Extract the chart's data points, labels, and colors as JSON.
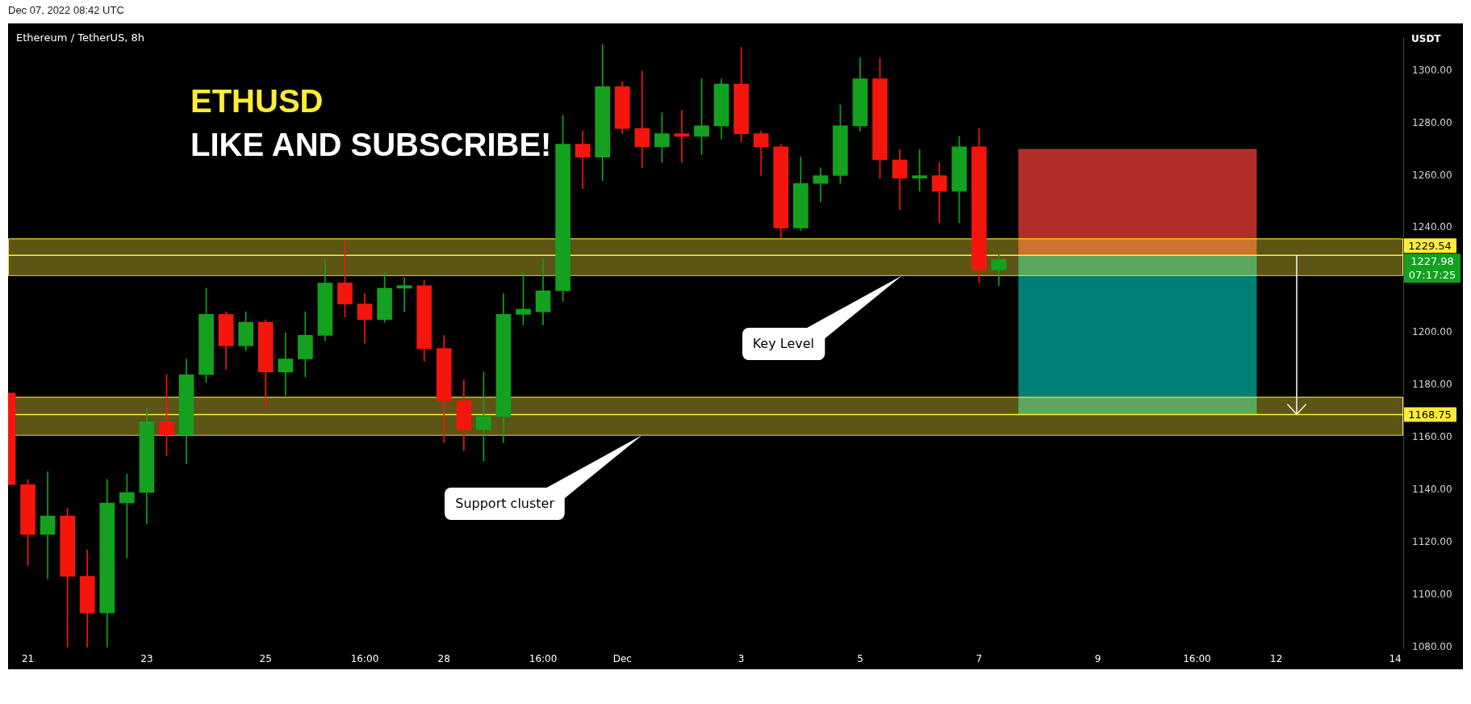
{
  "chart_data": {
    "type": "candlestick",
    "title": "Ethereum / TetherUS, 8h",
    "ylabel": "USDT",
    "series": [
      {
        "x": [
          "2022-11-20T16:00",
          "2022-11-21T00:00",
          "2022-11-21T08:00",
          "2022-11-21T16:00",
          "2022-11-22T00:00",
          "2022-11-22T08:00",
          "2022-11-22T16:00",
          "2022-11-23T00:00",
          "2022-11-23T08:00",
          "2022-11-23T16:00",
          "2022-11-24T00:00",
          "2022-11-24T08:00",
          "2022-11-24T16:00",
          "2022-11-25T00:00",
          "2022-11-25T08:00",
          "2022-11-25T16:00",
          "2022-11-26T00:00",
          "2022-11-26T08:00",
          "2022-11-26T16:00",
          "2022-11-27T00:00",
          "2022-11-27T08:00",
          "2022-11-27T16:00",
          "2022-11-28T00:00",
          "2022-11-28T08:00",
          "2022-11-28T16:00",
          "2022-11-29T00:00",
          "2022-11-29T08:00",
          "2022-11-29T16:00",
          "2022-11-30T00:00",
          "2022-11-30T08:00",
          "2022-11-30T16:00",
          "2022-12-01T00:00",
          "2022-12-01T08:00",
          "2022-12-01T16:00",
          "2022-12-02T00:00",
          "2022-12-02T08:00",
          "2022-12-02T16:00",
          "2022-12-03T00:00",
          "2022-12-03T08:00",
          "2022-12-03T16:00",
          "2022-12-04T00:00",
          "2022-12-04T08:00",
          "2022-12-04T16:00",
          "2022-12-05T00:00",
          "2022-12-05T08:00",
          "2022-12-05T16:00",
          "2022-12-06T00:00",
          "2022-12-06T08:00",
          "2022-12-06T16:00",
          "2022-12-07T00:00",
          "2022-12-07T08:00"
        ],
        "ohlc": [
          [
            1177,
            1177,
            1142,
            1142
          ],
          [
            1142,
            1144,
            1111,
            1123
          ],
          [
            1123,
            1147,
            1106,
            1130
          ],
          [
            1130,
            1133,
            1080,
            1107
          ],
          [
            1107,
            1117,
            1080,
            1093
          ],
          [
            1093,
            1144,
            1080,
            1135
          ],
          [
            1135,
            1146,
            1114,
            1139
          ],
          [
            1139,
            1171,
            1127,
            1166
          ],
          [
            1166,
            1184,
            1153,
            1161
          ],
          [
            1161,
            1190,
            1150,
            1184
          ],
          [
            1184,
            1217,
            1181,
            1207
          ],
          [
            1207,
            1208,
            1186,
            1195
          ],
          [
            1195,
            1208,
            1193,
            1204
          ],
          [
            1204,
            1205,
            1171,
            1185
          ],
          [
            1185,
            1200,
            1176,
            1190
          ],
          [
            1190,
            1208,
            1183,
            1199
          ],
          [
            1199,
            1228,
            1197,
            1219
          ],
          [
            1219,
            1235,
            1206,
            1211
          ],
          [
            1211,
            1215,
            1196,
            1205
          ],
          [
            1205,
            1223,
            1204,
            1217
          ],
          [
            1217,
            1221,
            1208,
            1218
          ],
          [
            1218,
            1220,
            1189,
            1194
          ],
          [
            1194,
            1199,
            1158,
            1174
          ],
          [
            1174,
            1182,
            1155,
            1163
          ],
          [
            1163,
            1185,
            1151,
            1168
          ],
          [
            1168,
            1215,
            1158,
            1207
          ],
          [
            1207,
            1223,
            1203,
            1209
          ],
          [
            1208,
            1228,
            1203,
            1216
          ],
          [
            1216,
            1283,
            1212,
            1272
          ],
          [
            1272,
            1277,
            1255,
            1267
          ],
          [
            1267,
            1310,
            1258,
            1294
          ],
          [
            1294,
            1296,
            1276,
            1278
          ],
          [
            1278,
            1300,
            1263,
            1271
          ],
          [
            1271,
            1284,
            1265,
            1276
          ],
          [
            1276,
            1285,
            1265,
            1275
          ],
          [
            1275,
            1297,
            1268,
            1279
          ],
          [
            1279,
            1297,
            1274,
            1295
          ],
          [
            1295,
            1309,
            1273,
            1276
          ],
          [
            1276,
            1277,
            1260,
            1271
          ],
          [
            1271,
            1272,
            1236,
            1240
          ],
          [
            1240,
            1267,
            1239,
            1257
          ],
          [
            1257,
            1263,
            1250,
            1260
          ],
          [
            1260,
            1287,
            1257,
            1279
          ],
          [
            1279,
            1305,
            1277,
            1297
          ],
          [
            1297,
            1305,
            1259,
            1266
          ],
          [
            1266,
            1270,
            1247,
            1259
          ],
          [
            1259,
            1270,
            1254,
            1260
          ],
          [
            1260,
            1265,
            1242,
            1254
          ],
          [
            1254,
            1275,
            1242,
            1271
          ],
          [
            1271,
            1278,
            1219,
            1224
          ],
          [
            1224,
            1230,
            1218,
            1227.98
          ]
        ],
        "colors": [
          "#f4160c",
          "#f4160c",
          "#13a11f",
          "#f4160c",
          "#f4160c",
          "#13a11f",
          "#13a11f",
          "#13a11f",
          "#f4160c",
          "#13a11f",
          "#13a11f",
          "#f4160c",
          "#13a11f",
          "#f4160c",
          "#13a11f",
          "#13a11f",
          "#13a11f",
          "#f4160c",
          "#f4160c",
          "#13a11f",
          "#13a11f",
          "#f4160c",
          "#f4160c",
          "#f4160c",
          "#13a11f",
          "#13a11f",
          "#13a11f",
          "#13a11f",
          "#13a11f",
          "#f4160c",
          "#13a11f",
          "#f4160c",
          "#f4160c",
          "#13a11f",
          "#f4160c",
          "#13a11f",
          "#13a11f",
          "#f4160c",
          "#f4160c",
          "#f4160c",
          "#13a11f",
          "#13a11f",
          "#13a11f",
          "#13a11f",
          "#f4160c",
          "#f4160c",
          "#13a11f",
          "#f4160c",
          "#13a11f",
          "#f4160c",
          "#13a11f"
        ]
      },
      {
        "type": "bar",
        "x": [
          "2022-12-09T16:00",
          "2022-12-09T16:00"
        ],
        "base": [
          1229.54,
          1168.75
        ],
        "values": [
          40.5,
          60.8
        ],
        "colors": [
          "#b02e28",
          "#008075"
        ]
      }
    ],
    "xlim": [
      "2022-11-20T16:00",
      "2022-12-14T03:15"
    ],
    "xticks": [
      {
        "value": "2022-11-21",
        "label": "21"
      },
      {
        "value": "2022-11-23",
        "label": "23"
      },
      {
        "value": "2022-11-25",
        "label": "25"
      },
      {
        "value": "2022-11-26T16:00",
        "label": "16:00"
      },
      {
        "value": "2022-11-28",
        "label": "28"
      },
      {
        "value": "2022-11-29T16:00",
        "label": "16:00"
      },
      {
        "value": "2022-12-01",
        "label": "Dec"
      },
      {
        "value": "2022-12-03",
        "label": "3"
      },
      {
        "value": "2022-12-05",
        "label": "5"
      },
      {
        "value": "2022-12-07",
        "label": "7"
      },
      {
        "value": "2022-12-09",
        "label": "9"
      },
      {
        "value": "2022-12-10T16:00",
        "label": "16:00"
      },
      {
        "value": "2022-12-12",
        "label": "12"
      },
      {
        "value": "2022-12-14",
        "label": "14"
      }
    ],
    "ylim": [
      1079.5,
      1312.5
    ],
    "yticks": [
      {
        "value": 1080,
        "label": "1080.00"
      },
      {
        "value": 1100,
        "label": "1100.00"
      },
      {
        "value": 1120,
        "label": "1120.00"
      },
      {
        "value": 1140,
        "label": "1140.00"
      },
      {
        "value": 1160,
        "label": "1160.00"
      },
      {
        "value": 1180,
        "label": "1180.00"
      },
      {
        "value": 1200,
        "label": "1200.00"
      },
      {
        "value": 1240,
        "label": "1240.00"
      },
      {
        "value": 1260,
        "label": "1260.00"
      },
      {
        "value": 1280,
        "label": "1280.00"
      },
      {
        "value": 1300,
        "label": "1300.00"
      }
    ],
    "ref_lines": [
      {
        "axis": "y",
        "value": 1229.54,
        "label": "1229.54",
        "color": "#ffeb3b"
      },
      {
        "axis": "y",
        "value": 1168.75,
        "label": "1168.75",
        "color": "#ffeb3b"
      }
    ],
    "bands": [
      {
        "axis": "y",
        "from": 1222,
        "to": 1236,
        "color": "#ffeb3b"
      },
      {
        "axis": "y",
        "from": 1161,
        "to": 1175.5,
        "color": "#ffeb3b"
      }
    ],
    "annotations": [
      "Dec 07, 2022 08:42 UTC",
      "ETHUSD",
      "LIKE AND SUBSCRIBE!",
      "Key Level",
      "Support cluster",
      "1227.98",
      "07:17:25"
    ]
  }
}
